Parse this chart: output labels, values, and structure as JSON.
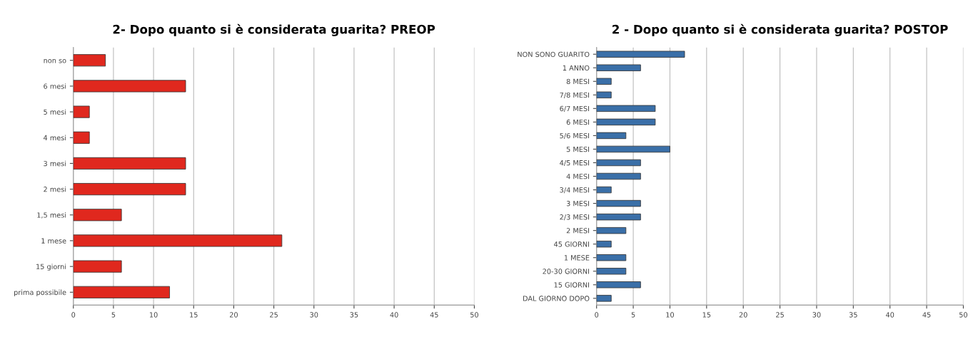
{
  "chart_data": [
    {
      "type": "bar",
      "orientation": "horizontal",
      "title": "2- Dopo quanto si è considerata guarita? PREOP",
      "categories": [
        "non so",
        "6 mesi",
        "5 mesi",
        "4 mesi",
        "3 mesi",
        "2 mesi",
        "1,5 mesi",
        "1 mese",
        "15 giorni",
        "prima possibile"
      ],
      "values": [
        4,
        14,
        2,
        2,
        14,
        14,
        6,
        26,
        6,
        12
      ],
      "color": "#e0281e",
      "xlim": [
        0,
        50
      ],
      "xticks": [
        0,
        5,
        10,
        15,
        20,
        25,
        30,
        35,
        40,
        45,
        50
      ],
      "grid": "x"
    },
    {
      "type": "bar",
      "orientation": "horizontal",
      "title": "2 - Dopo quanto si è considerata guarita? POSTOP",
      "categories": [
        "NON SONO GUARITO",
        "1 ANNO",
        "8 MESI",
        "7/8 MESI",
        "6/7 MESI",
        "6 MESI",
        "5/6 MESI",
        "5 MESI",
        "4/5 MESI",
        "4 MESI",
        "3/4 MESI",
        "3 MESI",
        "2/3 MESI",
        "2 MESI",
        "45 GIORNI",
        "1 MESE",
        "20-30 GIORNI",
        "15 GIORNI",
        "DAL GIORNO DOPO"
      ],
      "values": [
        12,
        6,
        2,
        2,
        8,
        8,
        4,
        10,
        6,
        6,
        2,
        6,
        6,
        4,
        2,
        4,
        4,
        6,
        2
      ],
      "color": "#3a6fa8",
      "xlim": [
        0,
        50
      ],
      "xticks": [
        0,
        5,
        10,
        15,
        20,
        25,
        30,
        35,
        40,
        45,
        50
      ],
      "grid": "x"
    }
  ]
}
